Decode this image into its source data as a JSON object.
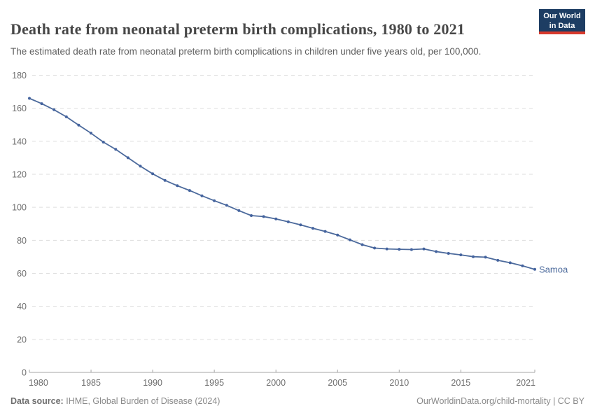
{
  "header": {
    "title": "Death rate from neonatal preterm birth complications, 1980 to 2021",
    "subtitle": "The estimated death rate from neonatal preterm birth complications in children under five years old, per 100,000.",
    "logo_line1": "Our World",
    "logo_line2": "in Data"
  },
  "chart_data": {
    "type": "line",
    "title": "Death rate from neonatal preterm birth complications, 1980 to 2021",
    "subtitle": "The estimated death rate from neonatal preterm birth complications in children under five years old, per 100,000.",
    "x": [
      1980,
      1981,
      1982,
      1983,
      1984,
      1985,
      1986,
      1987,
      1988,
      1989,
      1990,
      1991,
      1992,
      1993,
      1994,
      1995,
      1996,
      1997,
      1998,
      1999,
      2000,
      2001,
      2002,
      2003,
      2004,
      2005,
      2006,
      2007,
      2008,
      2009,
      2010,
      2011,
      2012,
      2013,
      2014,
      2015,
      2016,
      2017,
      2018,
      2019,
      2020,
      2021
    ],
    "series": [
      {
        "name": "Samoa",
        "color": "#4C6A9C",
        "values": [
          166.0,
          162.8,
          159.1,
          154.8,
          149.8,
          144.9,
          139.5,
          135.1,
          130.0,
          124.9,
          120.3,
          116.3,
          113.1,
          110.2,
          107.0,
          104.0,
          101.2,
          98.0,
          95.0,
          94.4,
          93.0,
          91.2,
          89.4,
          87.3,
          85.4,
          83.2,
          80.3,
          77.4,
          75.3,
          74.8,
          74.6,
          74.4,
          74.8,
          73.2,
          72.1,
          71.2,
          70.1,
          69.8,
          67.9,
          66.4,
          64.6,
          62.4
        ]
      }
    ],
    "xticks": [
      1980,
      1985,
      1990,
      1995,
      2000,
      2005,
      2010,
      2015,
      2021
    ],
    "xtick_labels": [
      "1980",
      "1985",
      "1990",
      "1995",
      "2000",
      "2005",
      "2010",
      "2015",
      "2021"
    ],
    "yticks": [
      0,
      20,
      40,
      60,
      80,
      100,
      120,
      140,
      160,
      180
    ],
    "ytick_labels": [
      "0",
      "20",
      "40",
      "60",
      "80",
      "100",
      "120",
      "140",
      "160",
      "180"
    ],
    "xlim": [
      1980,
      2021
    ],
    "ylim": [
      0,
      180
    ],
    "grid": "horizontal-dashed",
    "legend_position": "end-of-line-label",
    "end_label": "Samoa"
  },
  "footer": {
    "source_label": "Data source:",
    "source_value": "IHME, Global Burden of Disease (2024)",
    "credit": "OurWorldinData.org/child-mortality | CC BY"
  },
  "colors": {
    "line": "#4C6A9C",
    "marker": "#44639e",
    "entity_label": "#4C6A9C",
    "title_text": "#474747",
    "subtitle_text": "#5f5f5f",
    "axis_text": "#6e6e6e",
    "grid_line": "#dedede",
    "axis_line": "#a5a5a5",
    "logo_bg": "#1d3d63",
    "logo_red": "#d93a2d",
    "footer_text": "#8a8a8a"
  }
}
